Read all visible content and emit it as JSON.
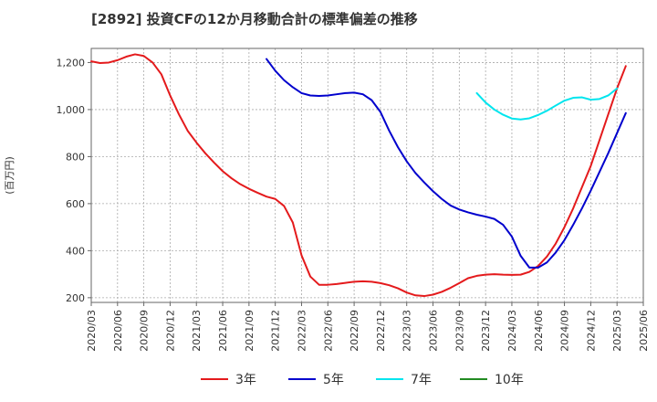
{
  "chart_data": {
    "type": "line",
    "title": "[2892]  投資CFの12か月移動合計の標準偏差の推移",
    "ylabel": "(百万円)",
    "ylim": [
      180,
      1260
    ],
    "yticks": [
      200,
      400,
      600,
      800,
      "1,000",
      "1,200"
    ],
    "ytick_values": [
      200,
      400,
      600,
      800,
      1000,
      1200
    ],
    "xlim": [
      "2020-03",
      "2025-06"
    ],
    "xticks": [
      "2020/03",
      "2020/06",
      "2020/09",
      "2020/12",
      "2021/03",
      "2021/06",
      "2021/09",
      "2021/12",
      "2022/03",
      "2022/06",
      "2022/09",
      "2022/12",
      "2023/03",
      "2023/06",
      "2023/09",
      "2023/12",
      "2024/03",
      "2024/06",
      "2024/09",
      "2024/12",
      "2025/03",
      "2025/06"
    ],
    "grid": true,
    "legend_position": "bottom",
    "series": [
      {
        "name": "3年",
        "color": "#e41a1c",
        "points": [
          [
            "2020-03",
            1205
          ],
          [
            "2020-04",
            1198
          ],
          [
            "2020-05",
            1200
          ],
          [
            "2020-06",
            1210
          ],
          [
            "2020-07",
            1225
          ],
          [
            "2020-08",
            1235
          ],
          [
            "2020-09",
            1228
          ],
          [
            "2020-10",
            1200
          ],
          [
            "2020-11",
            1150
          ],
          [
            "2020-12",
            1060
          ],
          [
            "2021-01",
            980
          ],
          [
            "2021-02",
            910
          ],
          [
            "2021-03",
            860
          ],
          [
            "2021-04",
            815
          ],
          [
            "2021-05",
            775
          ],
          [
            "2021-06",
            738
          ],
          [
            "2021-07",
            708
          ],
          [
            "2021-08",
            683
          ],
          [
            "2021-09",
            663
          ],
          [
            "2021-10",
            646
          ],
          [
            "2021-11",
            630
          ],
          [
            "2021-12",
            620
          ],
          [
            "2022-01",
            590
          ],
          [
            "2022-02",
            520
          ],
          [
            "2022-03",
            380
          ],
          [
            "2022-04",
            290
          ],
          [
            "2022-05",
            255
          ],
          [
            "2022-06",
            255
          ],
          [
            "2022-07",
            258
          ],
          [
            "2022-08",
            263
          ],
          [
            "2022-09",
            268
          ],
          [
            "2022-10",
            270
          ],
          [
            "2022-11",
            268
          ],
          [
            "2022-12",
            262
          ],
          [
            "2023-01",
            253
          ],
          [
            "2023-02",
            240
          ],
          [
            "2023-03",
            222
          ],
          [
            "2023-04",
            210
          ],
          [
            "2023-05",
            207
          ],
          [
            "2023-06",
            213
          ],
          [
            "2023-07",
            225
          ],
          [
            "2023-08",
            242
          ],
          [
            "2023-09",
            262
          ],
          [
            "2023-10",
            283
          ],
          [
            "2023-11",
            293
          ],
          [
            "2023-12",
            298
          ],
          [
            "2024-01",
            300
          ],
          [
            "2024-02",
            298
          ],
          [
            "2024-03",
            297
          ],
          [
            "2024-04",
            298
          ],
          [
            "2024-05",
            310
          ],
          [
            "2024-06",
            335
          ],
          [
            "2024-07",
            375
          ],
          [
            "2024-08",
            430
          ],
          [
            "2024-09",
            500
          ],
          [
            "2024-10",
            580
          ],
          [
            "2024-11",
            670
          ],
          [
            "2024-12",
            760
          ],
          [
            "2025-01",
            870
          ],
          [
            "2025-02",
            980
          ],
          [
            "2025-03",
            1090
          ],
          [
            "2025-04",
            1185
          ]
        ]
      },
      {
        "name": "5年",
        "color": "#0000cd",
        "points": [
          [
            "2021-11",
            1215
          ],
          [
            "2021-12",
            1165
          ],
          [
            "2022-01",
            1125
          ],
          [
            "2022-02",
            1095
          ],
          [
            "2022-03",
            1070
          ],
          [
            "2022-04",
            1060
          ],
          [
            "2022-05",
            1058
          ],
          [
            "2022-06",
            1060
          ],
          [
            "2022-07",
            1065
          ],
          [
            "2022-08",
            1070
          ],
          [
            "2022-09",
            1072
          ],
          [
            "2022-10",
            1065
          ],
          [
            "2022-11",
            1040
          ],
          [
            "2022-12",
            990
          ],
          [
            "2023-01",
            910
          ],
          [
            "2023-02",
            840
          ],
          [
            "2023-03",
            780
          ],
          [
            "2023-04",
            730
          ],
          [
            "2023-05",
            690
          ],
          [
            "2023-06",
            653
          ],
          [
            "2023-07",
            620
          ],
          [
            "2023-08",
            592
          ],
          [
            "2023-09",
            575
          ],
          [
            "2023-10",
            563
          ],
          [
            "2023-11",
            553
          ],
          [
            "2023-12",
            545
          ],
          [
            "2024-01",
            535
          ],
          [
            "2024-02",
            510
          ],
          [
            "2024-03",
            460
          ],
          [
            "2024-04",
            378
          ],
          [
            "2024-05",
            328
          ],
          [
            "2024-06",
            328
          ],
          [
            "2024-07",
            350
          ],
          [
            "2024-08",
            392
          ],
          [
            "2024-09",
            445
          ],
          [
            "2024-10",
            510
          ],
          [
            "2024-11",
            580
          ],
          [
            "2024-12",
            655
          ],
          [
            "2025-01",
            735
          ],
          [
            "2025-02",
            815
          ],
          [
            "2025-03",
            900
          ],
          [
            "2025-04",
            985
          ]
        ]
      },
      {
        "name": "7年",
        "color": "#00e5ee",
        "points": [
          [
            "2023-11",
            1070
          ],
          [
            "2023-12",
            1030
          ],
          [
            "2024-01",
            1000
          ],
          [
            "2024-02",
            978
          ],
          [
            "2024-03",
            962
          ],
          [
            "2024-04",
            958
          ],
          [
            "2024-05",
            963
          ],
          [
            "2024-06",
            977
          ],
          [
            "2024-07",
            995
          ],
          [
            "2024-08",
            1017
          ],
          [
            "2024-09",
            1038
          ],
          [
            "2024-10",
            1050
          ],
          [
            "2024-11",
            1052
          ],
          [
            "2024-12",
            1042
          ],
          [
            "2025-01",
            1045
          ],
          [
            "2025-02",
            1060
          ],
          [
            "2025-03",
            1090
          ]
        ]
      },
      {
        "name": "10年",
        "color": "#228b22",
        "points": []
      }
    ]
  }
}
